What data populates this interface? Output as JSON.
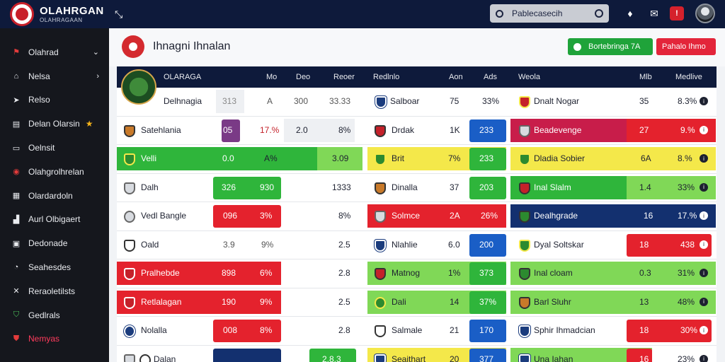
{
  "topbar": {
    "brand_title": "OLAHRGAN",
    "brand_subtitle": "OLAHRAGAAN",
    "search_placeholder": "Pablecasecih",
    "notification_badge": "!"
  },
  "sidebar": {
    "items": [
      {
        "label": "Olahrad",
        "icon": "flag-icon"
      },
      {
        "label": "Nelsa",
        "icon": "home-icon"
      },
      {
        "label": "Relso",
        "icon": "ticket-icon"
      },
      {
        "label": "Delan Olarsin",
        "icon": "calendar-icon"
      },
      {
        "label": "Oelnsit",
        "icon": "ticket-icon"
      },
      {
        "label": "Olahgrolhrelan",
        "icon": "ball-icon"
      },
      {
        "label": "Olardardoln",
        "icon": "grid-icon"
      },
      {
        "label": "Aurl Olbigaert",
        "icon": "chart-icon"
      },
      {
        "label": "Dedonade",
        "icon": "list-icon"
      },
      {
        "label": "Seahesdes",
        "icon": "chat-icon"
      },
      {
        "label": "Reraoletilsts",
        "icon": "cross-icon"
      },
      {
        "label": "Gedlrals",
        "icon": "shield-icon"
      },
      {
        "label": "Nemyas",
        "icon": "news-icon"
      }
    ]
  },
  "header": {
    "title": "Ihnagni Ihnalan",
    "btn_green": "Bortebringa 7A",
    "btn_red": "Pahalo Ihmo"
  },
  "table": {
    "headers": [
      "OLARAGA",
      "Mo",
      "Deo",
      "Reoer",
      "Redlnlo",
      "Aon",
      "Ads",
      "Weola",
      "Mlb",
      "Medlive"
    ],
    "rows": [
      {
        "team": "Delhnagia",
        "a": "313",
        "b": "A",
        "c": "300",
        "d": "33.33",
        "team2": "Salboar",
        "e": "75",
        "f": "33%",
        "team3": "Dnalt Nogar",
        "g": "35",
        "h": "8.3%"
      },
      {
        "team": "Satehlania",
        "a": "05",
        "b": "17.%",
        "c": "2.0",
        "d": "8%",
        "team2": "Drdak",
        "e": "1K",
        "f": "233",
        "team3": "Beadevenge",
        "g": "27",
        "h": "9.%"
      },
      {
        "team": "Velli",
        "a": "0.0",
        "b": "A%",
        "c": "",
        "d": "3.09",
        "team2": "Brit",
        "e": "7%",
        "f": "233",
        "team3": "Dladia Sobier",
        "g": "6A",
        "h": "8.%"
      },
      {
        "team": "Dalh",
        "a": "326",
        "b": "930",
        "c": "",
        "d": "1333",
        "team2": "Dinalla",
        "e": "37",
        "f": "203",
        "team3": "Inal Slalm",
        "g": "1.4",
        "h": "33%"
      },
      {
        "team": "Vedl Bangle",
        "a": "096",
        "b": "3%",
        "c": "",
        "d": "8%",
        "team2": "Solmce",
        "e": "2A",
        "f": "26%",
        "team3": "Dealhgrade",
        "g": "16",
        "h": "17.%"
      },
      {
        "team": "Oald",
        "a": "3.9",
        "b": "9%",
        "c": "",
        "d": "2.5",
        "team2": "Nlahlie",
        "e": "6.0",
        "f": "200",
        "team3": "Dyal Soltskar",
        "g": "18",
        "h": "438"
      },
      {
        "team": "Pralhebde",
        "a": "898",
        "b": "6%",
        "c": "",
        "d": "2.8",
        "team2": "Matnog",
        "e": "1%",
        "f": "373",
        "team3": "Inal cloam",
        "g": "0.3",
        "h": "31%"
      },
      {
        "team": "Retlalagan",
        "a": "190",
        "b": "9%",
        "c": "",
        "d": "2.5",
        "team2": "Dali",
        "e": "14",
        "f": "37%",
        "team3": "Barl Sluhr",
        "g": "13",
        "h": "48%"
      },
      {
        "team": "Nolalla",
        "a": "008",
        "b": "8%",
        "c": "",
        "d": "2.8",
        "team2": "Salmale",
        "e": "21",
        "f": "170",
        "team3": "Sphir Ihmadcian",
        "g": "18",
        "h": "30%"
      },
      {
        "team": "Dalan",
        "a": "",
        "b": "",
        "c": "2.8.3",
        "d": "",
        "team2": "Seaithart",
        "e": "20",
        "f": "377",
        "team3": "Una Iahan",
        "g": "16",
        "h": "23%"
      }
    ]
  }
}
